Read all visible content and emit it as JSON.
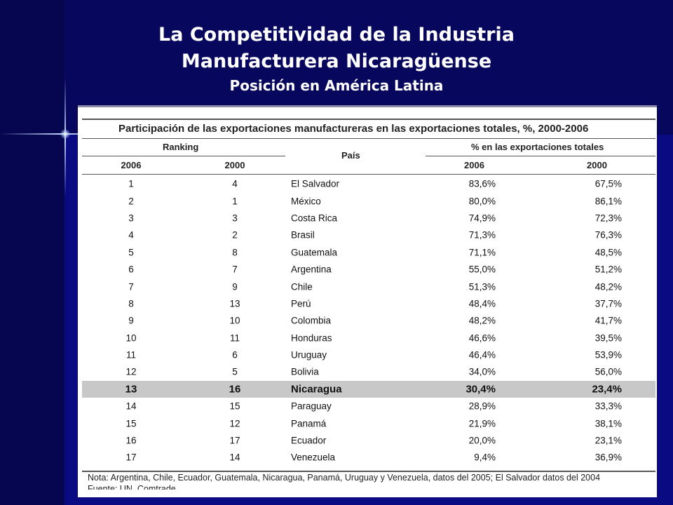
{
  "slide": {
    "title_line1": "La Competitividad de la Industria",
    "title_line2": "Manufacturera Nicaragüense",
    "subtitle": "Posición en América Latina"
  },
  "table": {
    "caption": "Participación de las exportaciones manufactureras en las exportaciones totales, %, 2000-2006",
    "ranking_header": "Ranking",
    "country_header": "País",
    "pct_header": "% en las exportaciones totales",
    "year_a": "2006",
    "year_b": "2000",
    "rows": [
      {
        "r2006": "1",
        "r2000": "4",
        "country": "El Salvador",
        "p2006": "83,6%",
        "p2000": "67,5%"
      },
      {
        "r2006": "2",
        "r2000": "1",
        "country": "México",
        "p2006": "80,0%",
        "p2000": "86,1%"
      },
      {
        "r2006": "3",
        "r2000": "3",
        "country": "Costa Rica",
        "p2006": "74,9%",
        "p2000": "72,3%"
      },
      {
        "r2006": "4",
        "r2000": "2",
        "country": "Brasil",
        "p2006": "71,3%",
        "p2000": "76,3%"
      },
      {
        "r2006": "5",
        "r2000": "8",
        "country": "Guatemala",
        "p2006": "71,1%",
        "p2000": "48,5%"
      },
      {
        "r2006": "6",
        "r2000": "7",
        "country": "Argentina",
        "p2006": "55,0%",
        "p2000": "51,2%"
      },
      {
        "r2006": "7",
        "r2000": "9",
        "country": "Chile",
        "p2006": "51,3%",
        "p2000": "48,2%"
      },
      {
        "r2006": "8",
        "r2000": "13",
        "country": "Perú",
        "p2006": "48,4%",
        "p2000": "37,7%"
      },
      {
        "r2006": "9",
        "r2000": "10",
        "country": "Colombia",
        "p2006": "48,2%",
        "p2000": "41,7%"
      },
      {
        "r2006": "10",
        "r2000": "11",
        "country": "Honduras",
        "p2006": "46,6%",
        "p2000": "39,5%"
      },
      {
        "r2006": "11",
        "r2000": "6",
        "country": "Uruguay",
        "p2006": "46,4%",
        "p2000": "53,9%"
      },
      {
        "r2006": "12",
        "r2000": "5",
        "country": "Bolivia",
        "p2006": "34,0%",
        "p2000": "56,0%"
      },
      {
        "r2006": "13",
        "r2000": "16",
        "country": "Nicaragua",
        "p2006": "30,4%",
        "p2000": "23,4%",
        "highlight": true
      },
      {
        "r2006": "14",
        "r2000": "15",
        "country": "Paraguay",
        "p2006": "28,9%",
        "p2000": "33,3%"
      },
      {
        "r2006": "15",
        "r2000": "12",
        "country": "Panamá",
        "p2006": "21,9%",
        "p2000": "38,1%"
      },
      {
        "r2006": "16",
        "r2000": "17",
        "country": "Ecuador",
        "p2006": "20,0%",
        "p2000": "23,1%"
      },
      {
        "r2006": "17",
        "r2000": "14",
        "country": "Venezuela",
        "p2006": "9,4%",
        "p2000": "36,9%"
      }
    ],
    "note": "Nota: Argentina, Chile, Ecuador, Guatemala, Nicaragua, Panamá, Uruguay y Venezuela, datos del 2005; El Salvador datos del 2004",
    "source": "Fuente: UN, Comtrade"
  },
  "colors": {
    "background": "#07075e",
    "highlight_row": "#c8c8c8"
  }
}
